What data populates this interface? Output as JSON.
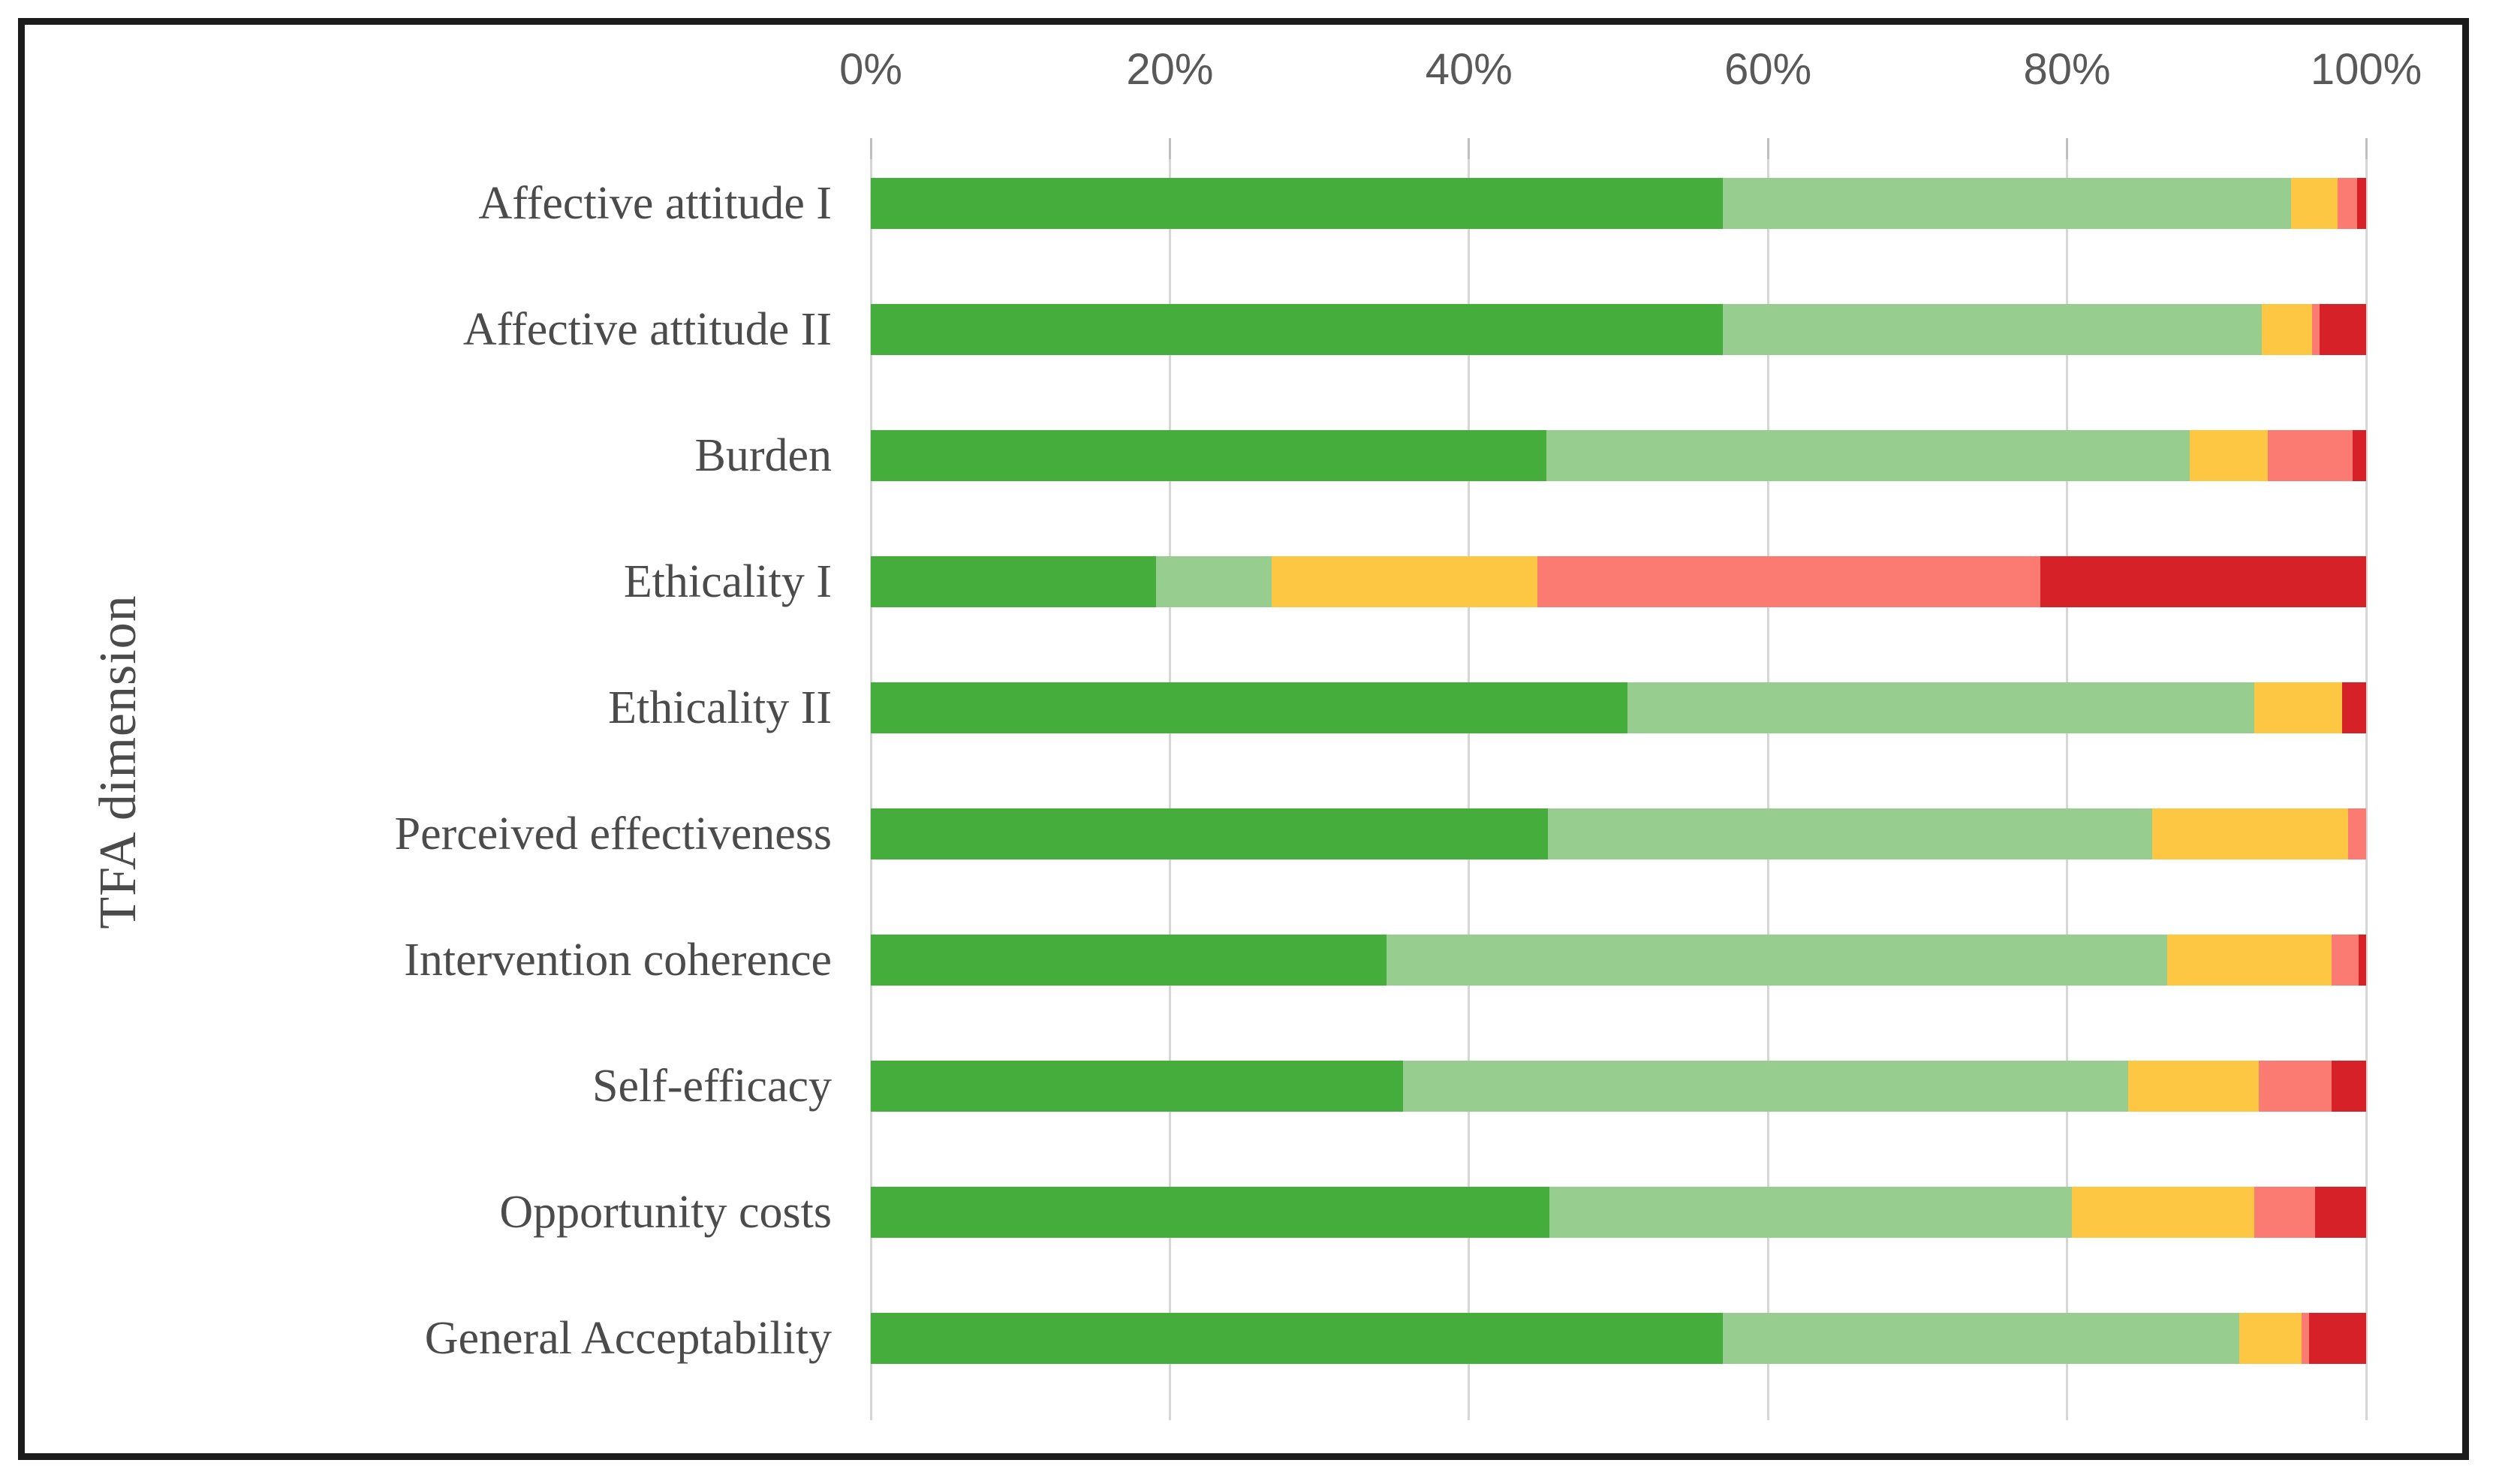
{
  "figure": {
    "background_color": "#ffffff",
    "border_color": "#1b1b1b",
    "gridline_color": "#d6d6d6",
    "tick_mark_color": "#bfbfbf",
    "axis_text_color": "#595959",
    "label_text_color": "#4b4b4b"
  },
  "chart_data": {
    "type": "bar",
    "orientation": "horizontal",
    "stacked": true,
    "title": "",
    "xlabel": "",
    "ylabel": "TFA dimension",
    "xlim": [
      0,
      100
    ],
    "x_axis": {
      "position": "top",
      "ticks": [
        "0%",
        "20%",
        "40%",
        "60%",
        "80%",
        "100%"
      ],
      "tick_values": [
        0,
        20,
        40,
        60,
        80,
        100
      ]
    },
    "grid": "vertical",
    "legend": "none",
    "categories": [
      "Affective attitude I",
      "Affective attitude II",
      "Burden",
      "Ethicality I",
      "Ethicality II",
      "Perceived effectiveness",
      "Intervention coherence",
      "Self-efficacy",
      "Opportunity costs",
      "General Acceptability"
    ],
    "series": [
      {
        "name": "dark green",
        "color": "#44AD3C",
        "values": [
          57.0,
          57.0,
          45.2,
          19.1,
          50.6,
          45.3,
          34.5,
          35.6,
          45.4,
          57.0
        ]
      },
      {
        "name": "light green",
        "color": "#97CE8F",
        "values": [
          38.0,
          36.0,
          43.0,
          7.7,
          41.9,
          40.4,
          52.2,
          48.5,
          34.9,
          34.5
        ]
      },
      {
        "name": "yellow",
        "color": "#FDC643",
        "values": [
          3.1,
          3.4,
          5.2,
          17.8,
          5.9,
          13.1,
          11.0,
          8.7,
          12.2,
          4.2
        ]
      },
      {
        "name": "light red",
        "color": "#FB7A72",
        "values": [
          1.3,
          0.5,
          5.7,
          33.6,
          0.0,
          1.2,
          1.8,
          4.9,
          4.1,
          0.5
        ]
      },
      {
        "name": "dark red",
        "color": "#D62129",
        "values": [
          0.6,
          3.1,
          0.9,
          21.8,
          1.6,
          0.0,
          0.5,
          2.3,
          3.4,
          3.8
        ]
      }
    ]
  }
}
